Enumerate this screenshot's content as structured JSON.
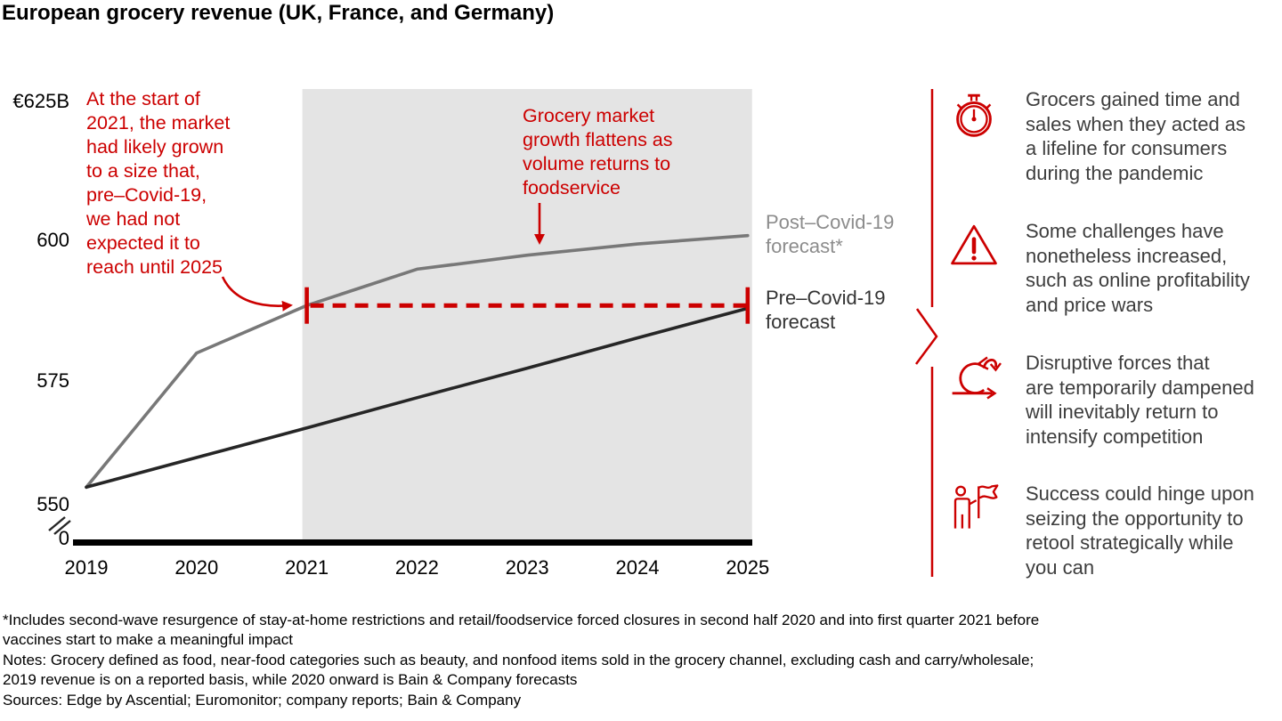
{
  "title": "European grocery revenue (UK, France, and Germany)",
  "colors": {
    "red": "#cc0000",
    "gray-line": "#787878",
    "dark-line": "#262626",
    "region": "#e4e4e4",
    "gray-text": "#8c8c8c",
    "body-text": "#3d3d3d"
  },
  "chart_data": {
    "type": "line",
    "title": "European grocery revenue (UK, France, and Germany)",
    "unit": "EUR billions",
    "categories": [
      "2019",
      "2020",
      "2021",
      "2022",
      "2023",
      "2024",
      "2025"
    ],
    "series": [
      {
        "name": "Post–Covid-19 forecast*",
        "color": "#787878",
        "values": [
          556,
          580,
          588.5,
          595,
          597.5,
          599.5,
          601
        ]
      },
      {
        "name": "Pre–Covid-19 forecast",
        "color": "#262626",
        "values": [
          556,
          561.3,
          566.6,
          572,
          577.3,
          582.7,
          588
        ]
      }
    ],
    "y_ticks": [
      "€625B",
      "600",
      "575",
      "550",
      "0"
    ],
    "ylim": [
      550,
      625
    ],
    "y_axis_break": true,
    "grid": false,
    "forecast_region": {
      "from": "2021",
      "to": "2025",
      "color": "#e4e4e4"
    },
    "dashed_reference": {
      "value": 588.5,
      "from": "2021",
      "to": "2025",
      "color": "#cc0000"
    },
    "annotations": [
      {
        "text": "At the start of\n2021, the market\nhad likely grown\nto a size that,\npre–Covid-19,\nwe had not\nexpected it to\nreach until 2025"
      },
      {
        "text": "Grocery market\ngrowth flattens as\nvolume returns to\nfoodservice"
      }
    ],
    "legend": {
      "post_label": "Post–Covid-19\nforecast*",
      "pre_label": "Pre–Covid-19\nforecast"
    }
  },
  "takeaways": {
    "items": [
      {
        "icon": "stopwatch-icon",
        "text": "Grocers gained time and\nsales when they acted as\na lifeline for consumers\nduring the pandemic"
      },
      {
        "icon": "warning-triangle-icon",
        "text": "Some challenges have\nnonetheless increased,\nsuch as online profitability\nand price wars"
      },
      {
        "icon": "disruption-loop-icon",
        "text": "Disruptive forces that\nare temporarily dampened\nwill inevitably return to\nintensify competition"
      },
      {
        "icon": "person-flag-icon",
        "text": "Success could hinge upon\nseizing the opportunity to\nretool strategically while\nyou can"
      }
    ]
  },
  "footnotes": {
    "star": "*Includes second-wave resurgence of stay-at-home restrictions and retail/foodservice forced closures in second half 2020 and into first quarter 2021 before\nvaccines start to make a meaningful impact",
    "notes": "Notes: Grocery defined as food, near-food categories such as beauty, and nonfood items sold in the grocery channel, excluding cash and carry/wholesale;\n2019 revenue is on a reported basis, while 2020 onward is Bain & Company forecasts",
    "sources": "Sources: Edge by Ascential; Euromonitor; company reports; Bain & Company"
  }
}
